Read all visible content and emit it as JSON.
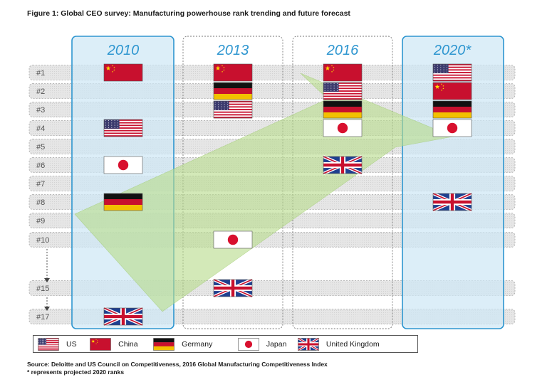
{
  "title": "Figure 1: Global CEO survey: Manufacturing powerhouse rank trending and future forecast",
  "chart_data": {
    "type": "table",
    "columns": [
      "2010",
      "2013",
      "2016",
      "2020*"
    ],
    "rank_labels": [
      "#1",
      "#2",
      "#3",
      "#4",
      "#5",
      "#6",
      "#7",
      "#8",
      "#9",
      "#10",
      "#15",
      "#17"
    ],
    "ranks": [
      1,
      2,
      3,
      4,
      5,
      6,
      7,
      8,
      9,
      10,
      15,
      17
    ],
    "placements": [
      {
        "country": "China",
        "year": "2010",
        "rank": 1
      },
      {
        "country": "US",
        "year": "2010",
        "rank": 4
      },
      {
        "country": "Japan",
        "year": "2010",
        "rank": 6
      },
      {
        "country": "Germany",
        "year": "2010",
        "rank": 8
      },
      {
        "country": "United Kingdom",
        "year": "2010",
        "rank": 17
      },
      {
        "country": "China",
        "year": "2013",
        "rank": 1
      },
      {
        "country": "Germany",
        "year": "2013",
        "rank": 2
      },
      {
        "country": "US",
        "year": "2013",
        "rank": 3
      },
      {
        "country": "Japan",
        "year": "2013",
        "rank": 10
      },
      {
        "country": "United Kingdom",
        "year": "2013",
        "rank": 15
      },
      {
        "country": "China",
        "year": "2016",
        "rank": 1
      },
      {
        "country": "US",
        "year": "2016",
        "rank": 2
      },
      {
        "country": "Germany",
        "year": "2016",
        "rank": 3
      },
      {
        "country": "Japan",
        "year": "2016",
        "rank": 4
      },
      {
        "country": "United Kingdom",
        "year": "2016",
        "rank": 6
      },
      {
        "country": "US",
        "year": "2020*",
        "rank": 1
      },
      {
        "country": "China",
        "year": "2020*",
        "rank": 2
      },
      {
        "country": "Germany",
        "year": "2020*",
        "rank": 3
      },
      {
        "country": "Japan",
        "year": "2020*",
        "rank": 4
      },
      {
        "country": "United Kingdom",
        "year": "2020*",
        "rank": 8
      }
    ],
    "highlighted_columns": [
      "2010",
      "2020*"
    ],
    "trend_arrow": "green arrow from lower-left (2010) to upper-right (2020*)"
  },
  "legend": {
    "items": [
      {
        "flag": "us",
        "label": "US"
      },
      {
        "flag": "china",
        "label": "China"
      },
      {
        "flag": "germany",
        "label": "Germany"
      },
      {
        "flag": "japan",
        "label": "Japan"
      },
      {
        "flag": "uk",
        "label": "United Kingdom"
      }
    ]
  },
  "source": "Source: Deloitte and US Council on Competitiveness, 2016 Global Manufacturing Competitiveness Index",
  "note": "* represents projected 2020 ranks",
  "colors": {
    "highlight_fill": "#cfe8f5",
    "highlight_stroke": "#2e96d0",
    "row_fill": "#e4e4e4",
    "arrow": "#b8dc8c",
    "us_red": "#c8102e",
    "us_blue": "#3c3b6e",
    "china_red": "#c8102e",
    "china_star": "#ffde00",
    "uk_blue": "#1f3f8f",
    "germany_black": "#111111",
    "germany_gold": "#f2c000"
  }
}
